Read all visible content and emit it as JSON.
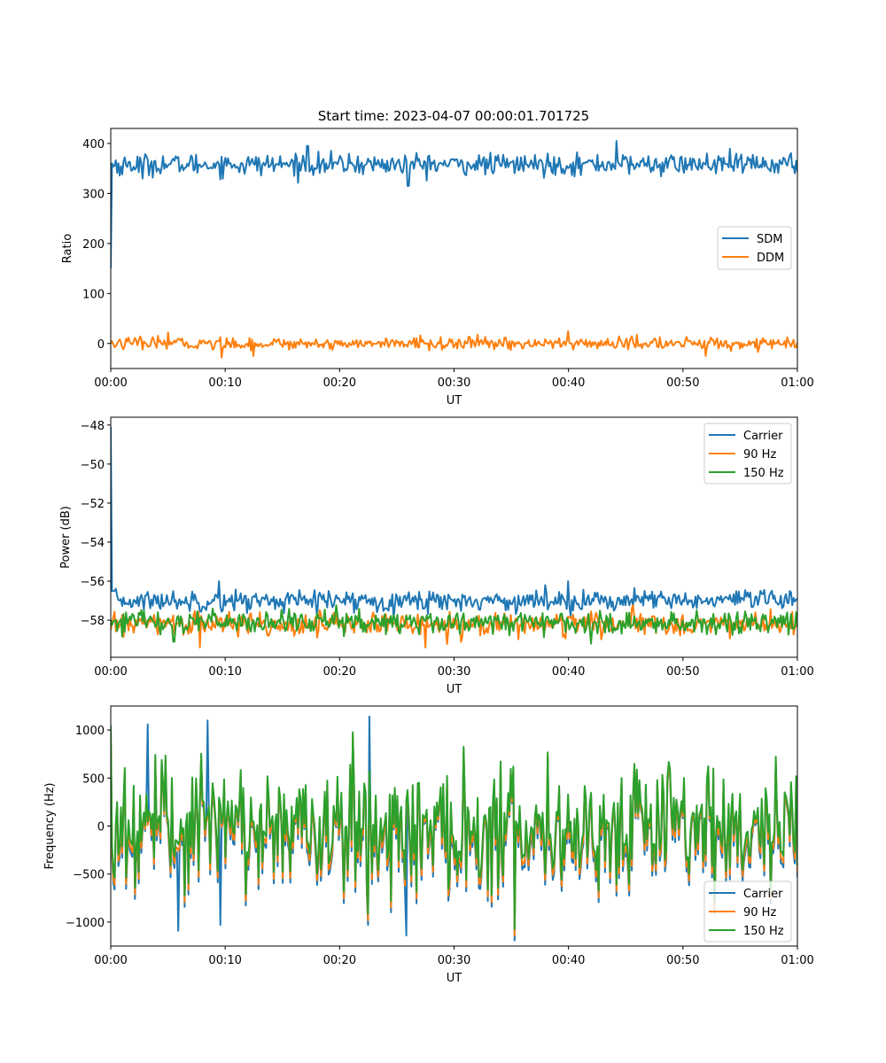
{
  "figure_title": "Start time: 2023-04-07 00:00:01.701725",
  "colors": {
    "C0": "#1f77b4",
    "C1": "#ff7f0e",
    "C2": "#2ca02c"
  },
  "chart_data": [
    {
      "type": "line",
      "xlabel": "UT",
      "ylabel": "Ratio",
      "xlim": [
        0,
        60
      ],
      "ylim": [
        -50,
        430
      ],
      "x_unit": "minutes",
      "xtick_labels": [
        "00:00",
        "00:10",
        "00:20",
        "00:30",
        "00:40",
        "00:50",
        "01:00"
      ],
      "yticks": [
        0,
        100,
        200,
        300,
        400
      ],
      "legend_position": "center-right",
      "grid": false,
      "series": [
        {
          "name": "SDM",
          "color": "C0",
          "start": 150,
          "level": 358,
          "noise": 14,
          "spikes": [
            [
              1.0,
              338
            ],
            [
              2.8,
              330
            ],
            [
              17.2,
              395
            ],
            [
              44.2,
              405
            ],
            [
              26.0,
              315
            ]
          ]
        },
        {
          "name": "DDM",
          "color": "C1",
          "start": 0,
          "level": 0,
          "noise": 8,
          "spikes": [
            [
              5.0,
              22
            ],
            [
              9.7,
              -28
            ],
            [
              12.5,
              -25
            ],
            [
              40.0,
              25
            ],
            [
              52.0,
              -25
            ]
          ]
        }
      ]
    },
    {
      "type": "line",
      "xlabel": "UT",
      "ylabel": "Power (dB)",
      "xlim": [
        0,
        60
      ],
      "ylim": [
        -59.9,
        -47.6
      ],
      "x_unit": "minutes",
      "xtick_labels": [
        "00:00",
        "00:10",
        "00:20",
        "00:30",
        "00:40",
        "00:50",
        "01:00"
      ],
      "yticks": [
        -58,
        -56,
        -54,
        -52,
        -50,
        -48
      ],
      "legend_position": "top-right",
      "grid": false,
      "series": [
        {
          "name": "Carrier",
          "color": "C0",
          "start": -48.1,
          "level": -57.0,
          "noise": 0.35,
          "spikes": [
            [
              9.5,
              -56.0
            ],
            [
              40.0,
              -56.0
            ],
            [
              18.0,
              -57.8
            ]
          ]
        },
        {
          "name": "90 Hz",
          "color": "C1",
          "start": -58.5,
          "level": -58.2,
          "noise": 0.4,
          "spikes": [
            [
              7.8,
              -59.4
            ],
            [
              27.5,
              -59.4
            ]
          ]
        },
        {
          "name": "150 Hz",
          "color": "C2",
          "start": -58.0,
          "level": -58.1,
          "noise": 0.4,
          "spikes": [
            [
              42.0,
              -59.2
            ],
            [
              5.5,
              -59.1
            ]
          ]
        }
      ]
    },
    {
      "type": "line",
      "xlabel": "UT",
      "ylabel": "Frequency (Hz)",
      "xlim": [
        0,
        60
      ],
      "ylim": [
        -1250,
        1250
      ],
      "x_unit": "minutes",
      "xtick_labels": [
        "00:00",
        "00:10",
        "00:20",
        "00:30",
        "00:40",
        "00:50",
        "01:00"
      ],
      "yticks": [
        -1000,
        -500,
        0,
        500,
        1000
      ],
      "legend_position": "lower-right",
      "grid": false,
      "series": [
        {
          "name": "Carrier",
          "color": "C0",
          "start": 1000,
          "level": -60,
          "noise": 330,
          "offset": -40,
          "spikes": [
            [
              3.2,
              1060
            ],
            [
              5.9,
              -1090
            ],
            [
              8.5,
              1100
            ],
            [
              22.6,
              1140
            ],
            [
              25.8,
              -1140
            ],
            [
              9.6,
              -1030
            ]
          ]
        },
        {
          "name": "90 Hz",
          "color": "C1",
          "start": 1000,
          "level": -40,
          "noise": 330,
          "offset": -20,
          "spikes": []
        },
        {
          "name": "150 Hz",
          "color": "C2",
          "start": 1050,
          "level": 0,
          "noise": 330,
          "offset": 0,
          "spikes": []
        }
      ]
    }
  ]
}
